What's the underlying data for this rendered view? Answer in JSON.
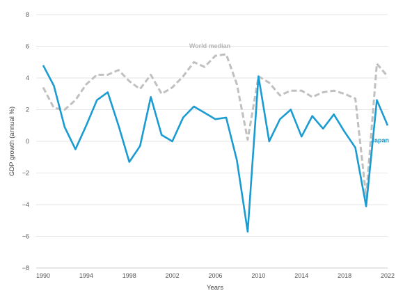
{
  "chart_data": {
    "type": "line",
    "title": "",
    "xlabel": "Years",
    "ylabel": "GDP growth (annual %)",
    "xlim": [
      1990,
      2022
    ],
    "ylim": [
      -8,
      8
    ],
    "x_ticks": [
      1990,
      1994,
      1998,
      2002,
      2006,
      2010,
      2014,
      2018,
      2022
    ],
    "y_ticks": [
      -8,
      -6,
      -4,
      -2,
      0,
      2,
      4,
      6,
      8
    ],
    "grid": true,
    "x": [
      1990,
      1991,
      1992,
      1993,
      1994,
      1995,
      1996,
      1997,
      1998,
      1999,
      2000,
      2001,
      2002,
      2003,
      2004,
      2005,
      2006,
      2007,
      2008,
      2009,
      2010,
      2011,
      2012,
      2013,
      2014,
      2015,
      2016,
      2017,
      2018,
      2019,
      2020,
      2021,
      2022
    ],
    "series": [
      {
        "name": "World median",
        "color": "#c0c0c0",
        "style": "dashed",
        "values": [
          3.4,
          2.1,
          2.0,
          2.6,
          3.6,
          4.2,
          4.2,
          4.5,
          3.8,
          3.3,
          4.2,
          3.0,
          3.4,
          4.1,
          5.0,
          4.7,
          5.4,
          5.5,
          3.6,
          0.1,
          4.1,
          3.7,
          2.9,
          3.2,
          3.2,
          2.8,
          3.1,
          3.2,
          3.0,
          2.7,
          -3.5,
          4.9,
          4.1
        ]
      },
      {
        "name": "Japan",
        "color": "#1a9bd1",
        "style": "solid",
        "values": [
          4.8,
          3.5,
          0.9,
          -0.5,
          1.0,
          2.6,
          3.1,
          1.0,
          -1.3,
          -0.3,
          2.8,
          0.4,
          0.0,
          1.5,
          2.2,
          1.8,
          1.4,
          1.5,
          -1.2,
          -5.7,
          4.1,
          0.0,
          1.4,
          2.0,
          0.3,
          1.6,
          0.8,
          1.7,
          0.6,
          -0.4,
          -4.1,
          2.6,
          1.0
        ]
      }
    ]
  }
}
